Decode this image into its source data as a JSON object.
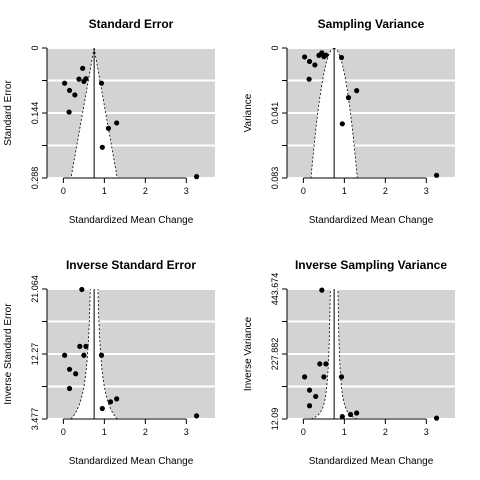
{
  "chart_data": [
    {
      "type": "scatter",
      "title": "Standard Error",
      "xlabel": "Standardized Mean Change",
      "ylabel": "Standard Error",
      "xlim": [
        -0.4,
        3.7
      ],
      "ylim": [
        0.288,
        0
      ],
      "y_inverted": true,
      "xticks": [
        0,
        1,
        2,
        3
      ],
      "xtick_labels": [
        "0",
        "1",
        "2",
        "3"
      ],
      "yticks": [
        0,
        0.072,
        0.144,
        0.216,
        0.288
      ],
      "ytick_labels": [
        "0",
        "",
        "0.144",
        "",
        "0.288"
      ],
      "grid": true,
      "background": "#d3d3d3",
      "center": 0.75,
      "funnel": "linear",
      "points": [
        {
          "x": 0.03,
          "y": 0.078
        },
        {
          "x": 0.15,
          "y": 0.094
        },
        {
          "x": 0.28,
          "y": 0.104
        },
        {
          "x": 0.38,
          "y": 0.069
        },
        {
          "x": 0.47,
          "y": 0.045
        },
        {
          "x": 0.5,
          "y": 0.074
        },
        {
          "x": 0.55,
          "y": 0.068
        },
        {
          "x": 0.93,
          "y": 0.078
        },
        {
          "x": 0.14,
          "y": 0.142
        },
        {
          "x": 1.1,
          "y": 0.178
        },
        {
          "x": 1.3,
          "y": 0.166
        },
        {
          "x": 0.95,
          "y": 0.22
        },
        {
          "x": 3.25,
          "y": 0.285
        }
      ]
    },
    {
      "type": "scatter",
      "title": "Sampling Variance",
      "xlabel": "Standardized Mean Change",
      "ylabel": "Variance",
      "xlim": [
        -0.4,
        3.7
      ],
      "ylim": [
        0.083,
        0
      ],
      "y_inverted": true,
      "xticks": [
        0,
        1,
        2,
        3
      ],
      "xtick_labels": [
        "0",
        "1",
        "2",
        "3"
      ],
      "yticks": [
        0,
        0.02075,
        0.0415,
        0.06225,
        0.083
      ],
      "ytick_labels": [
        "0",
        "",
        "0.041",
        "",
        "0.083"
      ],
      "grid": true,
      "background": "#d3d3d3",
      "center": 0.75,
      "funnel": "sqrt",
      "points": [
        {
          "x": 0.03,
          "y": 0.0057
        },
        {
          "x": 0.15,
          "y": 0.0086
        },
        {
          "x": 0.28,
          "y": 0.0108
        },
        {
          "x": 0.38,
          "y": 0.0047
        },
        {
          "x": 0.45,
          "y": 0.0031
        },
        {
          "x": 0.5,
          "y": 0.0055
        },
        {
          "x": 0.55,
          "y": 0.0046
        },
        {
          "x": 0.93,
          "y": 0.0061
        },
        {
          "x": 0.14,
          "y": 0.0199
        },
        {
          "x": 1.1,
          "y": 0.0317
        },
        {
          "x": 1.3,
          "y": 0.0272
        },
        {
          "x": 0.95,
          "y": 0.0484
        },
        {
          "x": 3.25,
          "y": 0.0813
        }
      ]
    },
    {
      "type": "scatter",
      "title": "Inverse Standard Error",
      "xlabel": "Standardized Mean Change",
      "ylabel": "Inverse Standard Error",
      "xlim": [
        -0.4,
        3.7
      ],
      "ylim": [
        3.477,
        21.064
      ],
      "xticks": [
        0,
        1,
        2,
        3
      ],
      "xtick_labels": [
        "0",
        "1",
        "2",
        "3"
      ],
      "yticks": [
        3.477,
        7.874,
        12.27,
        16.667,
        21.064
      ],
      "ytick_labels": [
        "3.477",
        "",
        "12.27",
        "",
        "21.064"
      ],
      "grid": true,
      "background": "#d3d3d3",
      "center": 0.75,
      "funnel": "inverse",
      "points": [
        {
          "x": 0.45,
          "y": 21.0
        },
        {
          "x": 0.4,
          "y": 13.3
        },
        {
          "x": 0.55,
          "y": 13.3
        },
        {
          "x": 0.03,
          "y": 12.1
        },
        {
          "x": 0.5,
          "y": 12.1
        },
        {
          "x": 0.93,
          "y": 12.1
        },
        {
          "x": 0.15,
          "y": 10.2
        },
        {
          "x": 0.3,
          "y": 9.6
        },
        {
          "x": 0.15,
          "y": 7.6
        },
        {
          "x": 1.3,
          "y": 6.2
        },
        {
          "x": 1.15,
          "y": 5.8
        },
        {
          "x": 0.95,
          "y": 4.9
        },
        {
          "x": 3.25,
          "y": 3.9
        }
      ]
    },
    {
      "type": "scatter",
      "title": "Inverse Sampling Variance",
      "xlabel": "Standardized Mean Change",
      "ylabel": "Inverse Variance",
      "xlim": [
        -0.4,
        3.7
      ],
      "ylim": [
        12.09,
        443.674
      ],
      "xticks": [
        0,
        1,
        2,
        3
      ],
      "xtick_labels": [
        "0",
        "1",
        "2",
        "3"
      ],
      "yticks": [
        12.09,
        119.986,
        227.882,
        335.778,
        443.674
      ],
      "ytick_labels": [
        "12.09",
        "",
        "227.882",
        "",
        "443.674"
      ],
      "grid": true,
      "background": "#d3d3d3",
      "center": 0.75,
      "funnel": "inverse_sqrt",
      "points": [
        {
          "x": 0.45,
          "y": 440
        },
        {
          "x": 0.4,
          "y": 195
        },
        {
          "x": 0.55,
          "y": 195
        },
        {
          "x": 0.03,
          "y": 152
        },
        {
          "x": 0.5,
          "y": 152
        },
        {
          "x": 0.93,
          "y": 152
        },
        {
          "x": 0.15,
          "y": 108
        },
        {
          "x": 0.3,
          "y": 87
        },
        {
          "x": 0.15,
          "y": 56
        },
        {
          "x": 1.3,
          "y": 32
        },
        {
          "x": 1.15,
          "y": 27
        },
        {
          "x": 0.95,
          "y": 20
        },
        {
          "x": 3.25,
          "y": 15
        }
      ]
    }
  ]
}
